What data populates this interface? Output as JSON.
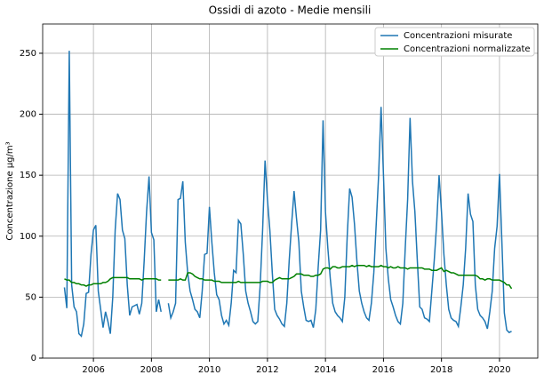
{
  "chart_data": {
    "type": "line",
    "title": "Ossidi di azoto - Medie mensili",
    "y_label": "Concentrazione µg/m³",
    "x": [
      2005,
      2005.083,
      2005.167,
      2005.25,
      2005.333,
      2005.417,
      2005.5,
      2005.583,
      2005.667,
      2005.75,
      2005.833,
      2005.917,
      2006,
      2006.083,
      2006.167,
      2006.25,
      2006.333,
      2006.417,
      2006.5,
      2006.583,
      2006.667,
      2006.75,
      2006.833,
      2006.917,
      2007,
      2007.083,
      2007.167,
      2007.25,
      2007.333,
      2007.417,
      2007.5,
      2007.583,
      2007.667,
      2007.75,
      2007.833,
      2007.917,
      2008,
      2008.083,
      2008.167,
      2008.25,
      2008.333,
      2008.417,
      2008.5,
      2008.583,
      2008.667,
      2008.75,
      2008.833,
      2008.917,
      2009,
      2009.083,
      2009.167,
      2009.25,
      2009.333,
      2009.417,
      2009.5,
      2009.583,
      2009.667,
      2009.75,
      2009.833,
      2009.917,
      2010,
      2010.083,
      2010.167,
      2010.25,
      2010.333,
      2010.417,
      2010.5,
      2010.583,
      2010.667,
      2010.75,
      2010.833,
      2010.917,
      2011,
      2011.083,
      2011.167,
      2011.25,
      2011.333,
      2011.417,
      2011.5,
      2011.583,
      2011.667,
      2011.75,
      2011.833,
      2011.917,
      2012,
      2012.083,
      2012.167,
      2012.25,
      2012.333,
      2012.417,
      2012.5,
      2012.583,
      2012.667,
      2012.75,
      2012.833,
      2012.917,
      2013,
      2013.083,
      2013.167,
      2013.25,
      2013.333,
      2013.417,
      2013.5,
      2013.583,
      2013.667,
      2013.75,
      2013.833,
      2013.917,
      2014,
      2014.083,
      2014.167,
      2014.25,
      2014.333,
      2014.417,
      2014.5,
      2014.583,
      2014.667,
      2014.75,
      2014.833,
      2014.917,
      2015,
      2015.083,
      2015.167,
      2015.25,
      2015.333,
      2015.417,
      2015.5,
      2015.583,
      2015.667,
      2015.75,
      2015.833,
      2015.917,
      2016,
      2016.083,
      2016.167,
      2016.25,
      2016.333,
      2016.417,
      2016.5,
      2016.583,
      2016.667,
      2016.75,
      2016.833,
      2016.917,
      2017,
      2017.083,
      2017.167,
      2017.25,
      2017.333,
      2017.417,
      2017.5,
      2017.583,
      2017.667,
      2017.75,
      2017.833,
      2017.917,
      2018,
      2018.083,
      2018.167,
      2018.25,
      2018.333,
      2018.417,
      2018.5,
      2018.583,
      2018.667,
      2018.75,
      2018.833,
      2018.917,
      2019,
      2019.083,
      2019.167,
      2019.25,
      2019.333,
      2019.417,
      2019.5,
      2019.583,
      2019.667,
      2019.75,
      2019.833,
      2019.917,
      2020,
      2020.083,
      2020.167,
      2020.25,
      2020.333,
      2020.417
    ],
    "series": [
      {
        "name": "Concentrazioni misurate",
        "color": "#1f77b4",
        "values": [
          58,
          41,
          252,
          60,
          42,
          38,
          20,
          18,
          28,
          53,
          54,
          85,
          105,
          109,
          55,
          40,
          25,
          38,
          30,
          20,
          50,
          105,
          135,
          130,
          105,
          98,
          60,
          35,
          42,
          43,
          44,
          36,
          45,
          80,
          120,
          149,
          103,
          97,
          38,
          48,
          38,
          null,
          null,
          45,
          33,
          38,
          45,
          130,
          131,
          145,
          95,
          70,
          55,
          48,
          40,
          38,
          33,
          55,
          85,
          86,
          124,
          95,
          70,
          52,
          48,
          35,
          28,
          31,
          27,
          45,
          72,
          70,
          113,
          110,
          85,
          55,
          45,
          38,
          30,
          28,
          30,
          60,
          105,
          162,
          130,
          105,
          70,
          40,
          35,
          32,
          28,
          26,
          45,
          80,
          110,
          137,
          115,
          95,
          55,
          42,
          31,
          30,
          31,
          25,
          40,
          75,
          105,
          195,
          120,
          90,
          65,
          45,
          38,
          35,
          33,
          30,
          50,
          100,
          139,
          132,
          110,
          80,
          55,
          45,
          38,
          33,
          31,
          45,
          70,
          110,
          150,
          206,
          150,
          90,
          65,
          48,
          42,
          35,
          30,
          28,
          45,
          90,
          130,
          197,
          145,
          120,
          80,
          42,
          40,
          33,
          32,
          30,
          55,
          80,
          110,
          150,
          120,
          85,
          60,
          40,
          33,
          31,
          30,
          26,
          42,
          60,
          90,
          135,
          118,
          112,
          60,
          40,
          35,
          33,
          30,
          24,
          38,
          55,
          90,
          108,
          151,
          95,
          37,
          23,
          21,
          22
        ]
      },
      {
        "name": "Concentrazioni normalizzate",
        "color": "#008000",
        "values": [
          65,
          64,
          64,
          62,
          62,
          61,
          61,
          60,
          60,
          59,
          60,
          60,
          61,
          61,
          61,
          61,
          62,
          62,
          63,
          65,
          66,
          66,
          66,
          66,
          66,
          66,
          66,
          65,
          65,
          65,
          65,
          65,
          64,
          65,
          65,
          65,
          65,
          65,
          65,
          64,
          64,
          null,
          null,
          64,
          64,
          64,
          64,
          64,
          65,
          64,
          64,
          70,
          70,
          69,
          67,
          66,
          65,
          65,
          64,
          64,
          64,
          64,
          63,
          63,
          63,
          62,
          62,
          62,
          62,
          62,
          62,
          62,
          63,
          62,
          62,
          62,
          62,
          62,
          62,
          62,
          62,
          62,
          63,
          63,
          63,
          62,
          62,
          64,
          65,
          66,
          65,
          65,
          65,
          65,
          66,
          67,
          69,
          69,
          69,
          68,
          68,
          68,
          67,
          67,
          68,
          68,
          69,
          73,
          74,
          74,
          73,
          75,
          75,
          74,
          74,
          75,
          75,
          75,
          75,
          76,
          75,
          76,
          76,
          76,
          76,
          75,
          76,
          75,
          75,
          75,
          75,
          76,
          75,
          75,
          74,
          75,
          74,
          74,
          75,
          74,
          74,
          74,
          73,
          74,
          74,
          74,
          74,
          74,
          74,
          73,
          73,
          73,
          72,
          72,
          72,
          73,
          74,
          71,
          72,
          71,
          70,
          70,
          69,
          68,
          68,
          68,
          68,
          68,
          68,
          68,
          68,
          67,
          65,
          65,
          64,
          65,
          65,
          64,
          64,
          64,
          64,
          63,
          62,
          60,
          60,
          57
        ]
      }
    ],
    "xlim": [
      2004.25,
      2021.32
    ],
    "xticks": [
      2006,
      2008,
      2010,
      2012,
      2014,
      2016,
      2018,
      2020
    ],
    "ylim": [
      0,
      274
    ],
    "yticks": [
      0,
      50,
      100,
      150,
      200,
      250
    ],
    "grid": true,
    "legend": "upper right"
  }
}
